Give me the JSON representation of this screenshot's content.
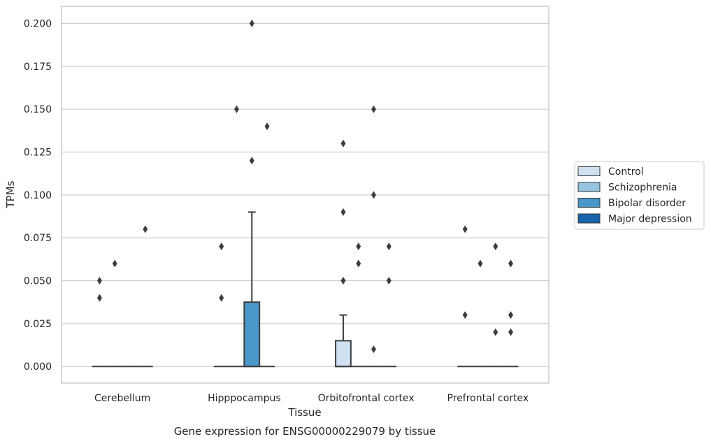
{
  "chart_data": {
    "type": "box",
    "title": "",
    "caption": "Gene expression for ENSG00000229079 by tissue",
    "xlabel": "Tissue",
    "ylabel": "TPMs",
    "ylim": [
      -0.0097,
      0.21
    ],
    "yticks": [
      "0.000",
      "0.025",
      "0.050",
      "0.075",
      "0.100",
      "0.125",
      "0.150",
      "0.175",
      "0.200"
    ],
    "grid": "horizontal",
    "legend_position": "right",
    "categories": [
      "Cerebellum",
      "Hipppocampus",
      "Orbitofrontal cortex",
      "Prefrontal cortex"
    ],
    "series": [
      {
        "name": "Control",
        "color": "#d0e1f2",
        "boxes": [
          {
            "q1": 0,
            "median": 0,
            "q3": 0,
            "whisker_low": 0,
            "whisker_high": 0,
            "outliers": [
              0.04,
              0.05
            ]
          },
          {
            "q1": 0,
            "median": 0,
            "q3": 0,
            "whisker_low": 0,
            "whisker_high": 0,
            "outliers": [
              0.04,
              0.07
            ]
          },
          {
            "q1": 0,
            "median": 0,
            "q3": 0.015,
            "whisker_low": 0,
            "whisker_high": 0.03,
            "outliers": [
              0.05,
              0.09,
              0.13
            ]
          },
          {
            "q1": 0,
            "median": 0,
            "q3": 0,
            "whisker_low": 0,
            "whisker_high": 0,
            "outliers": [
              0.03,
              0.08
            ]
          }
        ]
      },
      {
        "name": "Schizophrenia",
        "color": "#94c4df",
        "boxes": [
          {
            "q1": 0,
            "median": 0,
            "q3": 0,
            "whisker_low": 0,
            "whisker_high": 0,
            "outliers": [
              0.06
            ]
          },
          {
            "q1": 0,
            "median": 0,
            "q3": 0,
            "whisker_low": 0,
            "whisker_high": 0,
            "outliers": [
              0.15
            ]
          },
          {
            "q1": 0,
            "median": 0,
            "q3": 0,
            "whisker_low": 0,
            "whisker_high": 0,
            "outliers": [
              0.06,
              0.07
            ]
          },
          {
            "q1": 0,
            "median": 0,
            "q3": 0,
            "whisker_low": 0,
            "whisker_high": 0,
            "outliers": [
              0.06
            ]
          }
        ]
      },
      {
        "name": "Bipolar disorder",
        "color": "#4a98c9",
        "boxes": [
          {
            "q1": 0,
            "median": 0,
            "q3": 0,
            "whisker_low": 0,
            "whisker_high": 0,
            "outliers": []
          },
          {
            "q1": 0,
            "median": 0,
            "q3": 0.0375,
            "whisker_low": 0,
            "whisker_high": 0.09,
            "outliers": [
              0.12,
              0.2
            ]
          },
          {
            "q1": 0,
            "median": 0,
            "q3": 0,
            "whisker_low": 0,
            "whisker_high": 0,
            "outliers": [
              0.01,
              0.1,
              0.15
            ]
          },
          {
            "q1": 0,
            "median": 0,
            "q3": 0,
            "whisker_low": 0,
            "whisker_high": 0,
            "outliers": [
              0.02,
              0.07
            ]
          }
        ]
      },
      {
        "name": "Major depression",
        "color": "#1764ab",
        "boxes": [
          {
            "q1": 0,
            "median": 0,
            "q3": 0,
            "whisker_low": 0,
            "whisker_high": 0,
            "outliers": [
              0.08
            ]
          },
          {
            "q1": 0,
            "median": 0,
            "q3": 0,
            "whisker_low": 0,
            "whisker_high": 0,
            "outliers": [
              0.14
            ]
          },
          {
            "q1": 0,
            "median": 0,
            "q3": 0,
            "whisker_low": 0,
            "whisker_high": 0,
            "outliers": [
              0.05,
              0.07
            ]
          },
          {
            "q1": 0,
            "median": 0,
            "q3": 0,
            "whisker_low": 0,
            "whisker_high": 0,
            "outliers": [
              0.02,
              0.03,
              0.06
            ]
          }
        ]
      }
    ]
  }
}
